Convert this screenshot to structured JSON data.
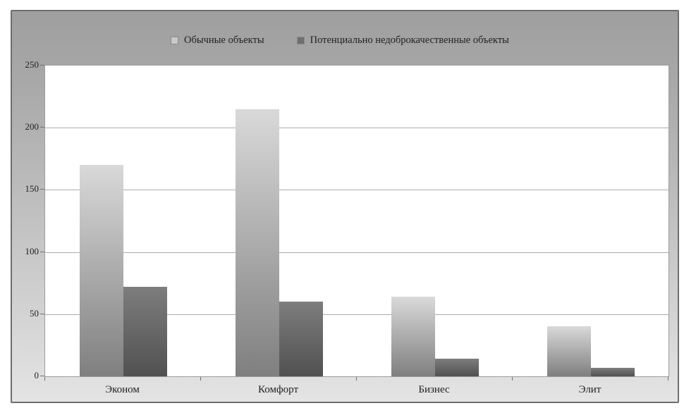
{
  "chart_data": {
    "type": "bar",
    "title": "",
    "categories": [
      "Эконом",
      "Комфорт",
      "Бизнес",
      "Элит"
    ],
    "series": [
      {
        "name": "Обычные объекты",
        "values": [
          170,
          215,
          64,
          40
        ],
        "fill_top": "#d9d9d9",
        "fill_bottom": "#7f7f7f",
        "legend_marker": "#c9c9c9"
      },
      {
        "name": "Потенциально недоброкачественные объекты",
        "values": [
          72,
          60,
          14,
          7
        ],
        "fill_top": "#7d7d7d",
        "fill_bottom": "#515151",
        "legend_marker": "#6f6f6f"
      }
    ],
    "ylim": [
      0,
      250
    ],
    "yticks": [
      0,
      50,
      100,
      150,
      200,
      250
    ],
    "ytick_labels": [
      "0",
      "50",
      "100",
      "150",
      "200",
      "250"
    ],
    "grid": "horizontal",
    "legend_position": "top",
    "colors": {
      "frame_border": "#6e6e6e",
      "frame_background_top": "#9f9f9f",
      "frame_background_bottom": "#e4e4e4",
      "plot_background": "#ffffff",
      "gridline": "#ababab",
      "text": "#1f1f1f"
    }
  }
}
